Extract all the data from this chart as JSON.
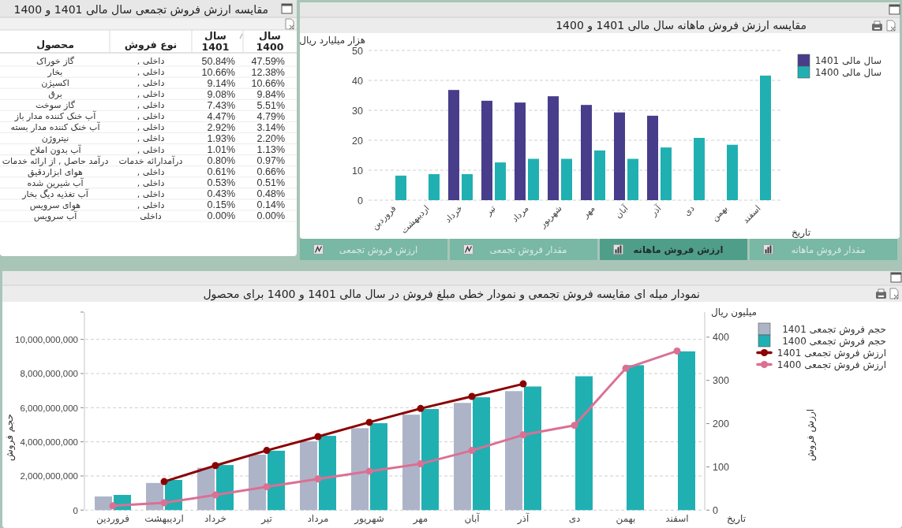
{
  "chart_data": [
    {
      "type": "other",
      "title": "مقایسه ارزش فروش تجمعی سال مالی 1401 و 1400",
      "annotations": [
        "محصول",
        "نوع فروش"
      ],
      "categories": [
        "گاز خوراک",
        "بخار",
        "اکسیژن",
        "برق",
        "گاز سوخت",
        "آب خنک کننده مدار باز",
        "آب خنک کننده مدار بسته",
        "نیتروژن",
        "آب بدون املاح",
        "درآمد حاصل , از ارائه خدمات",
        "هوای ابزاردقیق",
        "آب شیرین شده",
        "آب تغذیه دیگ بخار",
        "هوای سرویس",
        "آب سرویس"
      ],
      "y2_categories": [
        "داخلی ,",
        "داخلی ,",
        "داخلی ,",
        "داخلی ,",
        "داخلی ,",
        "داخلی ,",
        "داخلی ,",
        "داخلی ,",
        "داخلی ,",
        "درآمدارائه خدمات",
        "داخلی ,",
        "داخلی ,",
        "داخلی ,",
        "داخلی ,",
        "داخلی"
      ],
      "series": [
        {
          "name": "سال 1401",
          "values": [
            50.84,
            10.66,
            9.14,
            9.08,
            7.43,
            4.47,
            2.92,
            1.93,
            1.01,
            0.8,
            0.61,
            0.53,
            0.43,
            0.15,
            0.0
          ],
          "value_labels": [
            "50.84%",
            "10.66%",
            "9.14%",
            "9.08%",
            "7.43%",
            "4.47%",
            "2.92%",
            "1.93%",
            "1.01%",
            "0.80%",
            "0.61%",
            "0.53%",
            "0.43%",
            "0.15%",
            "0.00%"
          ]
        },
        {
          "name": "سال 1400",
          "values": [
            47.59,
            12.38,
            10.66,
            9.84,
            5.51,
            4.79,
            3.14,
            2.2,
            1.13,
            0.97,
            0.66,
            0.51,
            0.48,
            0.14,
            0.0
          ],
          "value_labels": [
            "47.59%",
            "12.38%",
            "10.66%",
            "9.84%",
            "5.51%",
            "4.79%",
            "3.14%",
            "2.20%",
            "1.13%",
            "0.97%",
            "0.66%",
            "0.51%",
            "0.48%",
            "0.14%",
            "0.00%"
          ]
        }
      ]
    },
    {
      "type": "bar",
      "title": "مقایسه ارزش فروش ماهانه سال مالی 1401 و 1400",
      "ylabel": "هزار میلیارد ریال",
      "xlabel": "تاریخ",
      "categories": [
        "فروردین",
        "اردیبهشت",
        "خرداد",
        "تیر",
        "مرداد",
        "شهریور",
        "مهر",
        "آبان",
        "آذر",
        "دی",
        "بهمن",
        "اسفند"
      ],
      "series": [
        {
          "name": "سال مالی 1401",
          "color": "#483d8b",
          "values": [
            null,
            null,
            36.8,
            33.2,
            32.6,
            34.7,
            31.8,
            29.3,
            28.2,
            null,
            null,
            null
          ]
        },
        {
          "name": "سال مالی 1400",
          "color": "#20b0b2",
          "values": [
            8.2,
            8.7,
            8.7,
            12.6,
            13.8,
            13.8,
            16.6,
            13.8,
            17.6,
            20.8,
            18.5,
            41.6
          ]
        }
      ],
      "ylim": [
        0,
        50
      ],
      "yticks": [
        0,
        10,
        20,
        30,
        40,
        50
      ],
      "grid": "y",
      "legend": "top right",
      "annotations": [
        "ارزش فروش تجمعی",
        "مقدار فروش تجمعی",
        "ارزش فروش ماهانه",
        "مقدار فروش ماهانه"
      ]
    },
    {
      "type": "bar",
      "title": "نمودار میله ای مقایسه فروش تجمعی و نمودار خطی مبلغ فروش در سال مالی 1401 و 1400 برای محصول",
      "xlabel": "تاریخ",
      "ylabel": "حجم فروش",
      "y2label": "ارزش فروش",
      "categories": [
        "فروردین",
        "اردیبهشت",
        "خرداد",
        "تیر",
        "مرداد",
        "شهریور",
        "مهر",
        "آبان",
        "آذر",
        "دی",
        "بهمن",
        "اسفند"
      ],
      "series": [
        {
          "name": "حجم فروش تجمعی 1401",
          "type": "bar",
          "color": "#aeb4c8",
          "values": [
            800000000,
            1590000000,
            2480000000,
            3250000000,
            4030000000,
            4800000000,
            5590000000,
            6280000000,
            6970000000,
            null,
            null,
            null
          ]
        },
        {
          "name": "حجم فروش تجمعی 1400",
          "type": "bar",
          "color": "#20b0b2",
          "values": [
            890000000,
            1770000000,
            2640000000,
            3480000000,
            4350000000,
            5090000000,
            5920000000,
            6610000000,
            7240000000,
            7840000000,
            8490000000,
            9300000000
          ]
        },
        {
          "name": "ارزش فروش تجمعی 1401",
          "type": "line",
          "axis": "y2",
          "color": "#8b0000",
          "marker": "circle",
          "values": [
            null,
            66,
            103,
            138,
            170,
            203,
            235,
            263,
            292,
            null,
            null,
            null
          ]
        },
        {
          "name": "ارزش فروش تجمعی 1400",
          "type": "line",
          "axis": "y2",
          "color": "#db7093",
          "marker": "circle",
          "values": [
            10,
            17,
            35,
            54,
            72,
            90,
            107,
            138,
            174,
            196,
            328,
            368
          ]
        }
      ],
      "ylim": [
        0,
        11600000000
      ],
      "yticks": [
        0,
        {
          "value": 2000000000,
          "label": "2,000,000,000"
        },
        {
          "value": 4000000000,
          "label": "4,000,000,000"
        },
        {
          "value": 6000000000,
          "label": "6,000,000,000"
        },
        {
          "value": 8000000000,
          "label": "8,000,000,000"
        },
        {
          "value": 10000000000,
          "label": "10,000,000,000"
        },
        {
          "value": 11600000000,
          "label": null
        }
      ],
      "y2lim": [
        0,
        458
      ],
      "y2ticks": [
        0,
        100,
        200,
        300,
        400
      ],
      "grid": "y",
      "legend": "top right",
      "annotations": [
        "میلیون ریال"
      ]
    }
  ]
}
